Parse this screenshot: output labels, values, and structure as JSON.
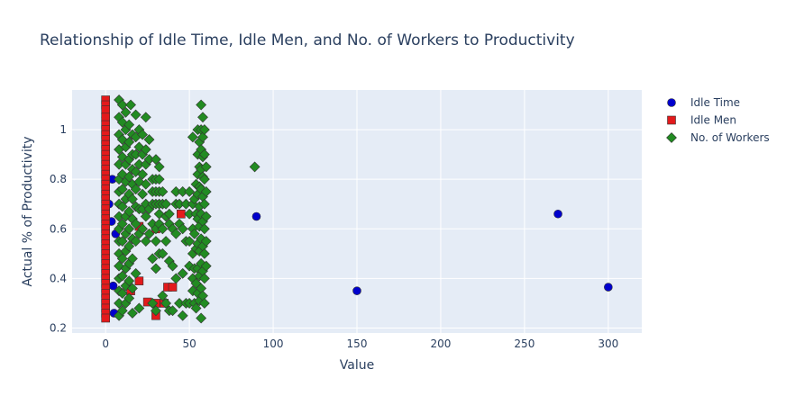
{
  "chart_data": {
    "type": "scatter",
    "title": "Relationship of Idle Time, Idle Men, and No. of Workers to Productivity",
    "xlabel": "Value",
    "ylabel": "Actual % of Productivity",
    "xlim": [
      -20,
      320
    ],
    "ylim": [
      0.18,
      1.16
    ],
    "x_ticks": [
      0,
      50,
      100,
      150,
      200,
      250,
      300
    ],
    "y_ticks": [
      0.2,
      0.4,
      0.6,
      0.8,
      1
    ],
    "grid": true,
    "legend_position": "top-right",
    "colors": {
      "plot_bg": "#e5ecf6",
      "grid": "#ffffff",
      "idle_time": "#0000cd",
      "idle_men": "#e31a1c",
      "workers": "#228b22",
      "marker_edge": "#333333"
    },
    "series": [
      {
        "name": "Idle Time",
        "marker": "circle",
        "points": [
          [
            0,
            1.05
          ],
          [
            0,
            0.98
          ],
          [
            0,
            0.9
          ],
          [
            0,
            0.82
          ],
          [
            0,
            0.75
          ],
          [
            0,
            0.68
          ],
          [
            0,
            0.6
          ],
          [
            0,
            0.5
          ],
          [
            0,
            0.4
          ],
          [
            0,
            0.3
          ],
          [
            2,
            0.7
          ],
          [
            3.5,
            0.63
          ],
          [
            4,
            0.8
          ],
          [
            4.5,
            0.37
          ],
          [
            5,
            0.26
          ],
          [
            6,
            0.58
          ],
          [
            90,
            0.65
          ],
          [
            150,
            0.35
          ],
          [
            270,
            0.66
          ],
          [
            300,
            0.365
          ]
        ]
      },
      {
        "name": "Idle Men",
        "marker": "square",
        "points": [
          [
            0,
            1.12
          ],
          [
            0,
            1.1
          ],
          [
            0,
            1.08
          ],
          [
            0,
            1.05
          ],
          [
            0,
            1.02
          ],
          [
            0,
            1.0
          ],
          [
            0,
            0.98
          ],
          [
            0,
            0.96
          ],
          [
            0,
            0.94
          ],
          [
            0,
            0.92
          ],
          [
            0,
            0.9
          ],
          [
            0,
            0.88
          ],
          [
            0,
            0.86
          ],
          [
            0,
            0.84
          ],
          [
            0,
            0.82
          ],
          [
            0,
            0.8
          ],
          [
            0,
            0.78
          ],
          [
            0,
            0.76
          ],
          [
            0,
            0.74
          ],
          [
            0,
            0.72
          ],
          [
            0,
            0.7
          ],
          [
            0,
            0.68
          ],
          [
            0,
            0.66
          ],
          [
            0,
            0.64
          ],
          [
            0,
            0.62
          ],
          [
            0,
            0.6
          ],
          [
            0,
            0.58
          ],
          [
            0,
            0.56
          ],
          [
            0,
            0.54
          ],
          [
            0,
            0.52
          ],
          [
            0,
            0.5
          ],
          [
            0,
            0.48
          ],
          [
            0,
            0.46
          ],
          [
            0,
            0.44
          ],
          [
            0,
            0.42
          ],
          [
            0,
            0.4
          ],
          [
            0,
            0.38
          ],
          [
            0,
            0.36
          ],
          [
            0,
            0.34
          ],
          [
            0,
            0.32
          ],
          [
            0,
            0.3
          ],
          [
            0,
            0.28
          ],
          [
            0,
            0.26
          ],
          [
            0,
            0.24
          ],
          [
            15,
            0.35
          ],
          [
            20,
            0.61
          ],
          [
            20,
            0.39
          ],
          [
            25,
            0.305
          ],
          [
            30,
            0.6
          ],
          [
            30,
            0.25
          ],
          [
            30,
            0.3
          ],
          [
            35,
            0.3
          ],
          [
            37,
            0.365
          ],
          [
            40,
            0.365
          ],
          [
            45,
            0.66
          ]
        ]
      },
      {
        "name": "No. of Workers",
        "marker": "diamond",
        "points": [
          [
            8,
            1.12
          ],
          [
            8,
            1.05
          ],
          [
            8,
            0.98
          ],
          [
            8,
            0.92
          ],
          [
            8,
            0.86
          ],
          [
            8,
            0.8
          ],
          [
            8,
            0.75
          ],
          [
            8,
            0.7
          ],
          [
            8,
            0.65
          ],
          [
            8,
            0.6
          ],
          [
            8,
            0.55
          ],
          [
            8,
            0.5
          ],
          [
            8,
            0.45
          ],
          [
            8,
            0.4
          ],
          [
            8,
            0.35
          ],
          [
            8,
            0.3
          ],
          [
            8,
            0.25
          ],
          [
            10,
            1.1
          ],
          [
            10,
            1.03
          ],
          [
            10,
            0.96
          ],
          [
            10,
            0.89
          ],
          [
            10,
            0.82
          ],
          [
            10,
            0.76
          ],
          [
            10,
            0.69
          ],
          [
            10,
            0.62
          ],
          [
            10,
            0.55
          ],
          [
            10,
            0.48
          ],
          [
            10,
            0.41
          ],
          [
            10,
            0.34
          ],
          [
            10,
            0.27
          ],
          [
            12,
            1.07
          ],
          [
            12,
            1.0
          ],
          [
            12,
            0.93
          ],
          [
            12,
            0.86
          ],
          [
            12,
            0.79
          ],
          [
            12,
            0.72
          ],
          [
            12,
            0.65
          ],
          [
            12,
            0.58
          ],
          [
            12,
            0.51
          ],
          [
            12,
            0.44
          ],
          [
            12,
            0.37
          ],
          [
            12,
            0.3
          ],
          [
            14,
            1.02
          ],
          [
            14,
            0.95
          ],
          [
            14,
            0.88
          ],
          [
            14,
            0.81
          ],
          [
            14,
            0.74
          ],
          [
            14,
            0.67
          ],
          [
            14,
            0.6
          ],
          [
            14,
            0.53
          ],
          [
            14,
            0.46
          ],
          [
            14,
            0.39
          ],
          [
            14,
            0.32
          ],
          [
            15,
            1.1
          ],
          [
            16,
            0.98
          ],
          [
            16,
            0.9
          ],
          [
            16,
            0.84
          ],
          [
            16,
            0.78
          ],
          [
            16,
            0.72
          ],
          [
            16,
            0.64
          ],
          [
            16,
            0.56
          ],
          [
            16,
            0.48
          ],
          [
            16,
            0.36
          ],
          [
            16,
            0.26
          ],
          [
            18,
            1.06
          ],
          [
            18,
            0.97
          ],
          [
            18,
            0.9
          ],
          [
            18,
            0.83
          ],
          [
            18,
            0.76
          ],
          [
            18,
            0.69
          ],
          [
            18,
            0.62
          ],
          [
            18,
            0.55
          ],
          [
            18,
            0.42
          ],
          [
            20,
            1.0
          ],
          [
            20,
            0.93
          ],
          [
            20,
            0.86
          ],
          [
            20,
            0.79
          ],
          [
            20,
            0.68
          ],
          [
            20,
            0.58
          ],
          [
            20,
            0.28
          ],
          [
            22,
            0.98
          ],
          [
            22,
            0.9
          ],
          [
            22,
            0.82
          ],
          [
            22,
            0.74
          ],
          [
            22,
            0.68
          ],
          [
            22,
            0.6
          ],
          [
            24,
            1.05
          ],
          [
            24,
            0.92
          ],
          [
            24,
            0.86
          ],
          [
            24,
            0.78
          ],
          [
            24,
            0.7
          ],
          [
            24,
            0.65
          ],
          [
            24,
            0.55
          ],
          [
            26,
            0.96
          ],
          [
            26,
            0.88
          ],
          [
            26,
            0.68
          ],
          [
            26,
            0.58
          ],
          [
            28,
            0.8
          ],
          [
            28,
            0.75
          ],
          [
            28,
            0.7
          ],
          [
            28,
            0.62
          ],
          [
            28,
            0.48
          ],
          [
            28,
            0.3
          ],
          [
            30,
            0.88
          ],
          [
            30,
            0.8
          ],
          [
            30,
            0.75
          ],
          [
            30,
            0.7
          ],
          [
            30,
            0.6
          ],
          [
            30,
            0.55
          ],
          [
            30,
            0.44
          ],
          [
            30,
            0.27
          ],
          [
            32,
            0.85
          ],
          [
            32,
            0.8
          ],
          [
            32,
            0.75
          ],
          [
            32,
            0.7
          ],
          [
            32,
            0.66
          ],
          [
            32,
            0.62
          ],
          [
            32,
            0.5
          ],
          [
            34,
            0.75
          ],
          [
            34,
            0.7
          ],
          [
            34,
            0.6
          ],
          [
            34,
            0.5
          ],
          [
            34,
            0.33
          ],
          [
            36,
            0.7
          ],
          [
            36,
            0.65
          ],
          [
            36,
            0.55
          ],
          [
            36,
            0.3
          ],
          [
            38,
            0.66
          ],
          [
            38,
            0.62
          ],
          [
            38,
            0.47
          ],
          [
            38,
            0.27
          ],
          [
            40,
            0.6
          ],
          [
            40,
            0.45
          ],
          [
            40,
            0.27
          ],
          [
            42,
            0.75
          ],
          [
            42,
            0.7
          ],
          [
            42,
            0.58
          ],
          [
            42,
            0.4
          ],
          [
            44,
            0.7
          ],
          [
            44,
            0.62
          ],
          [
            44,
            0.3
          ],
          [
            46,
            0.75
          ],
          [
            46,
            0.6
          ],
          [
            46,
            0.42
          ],
          [
            46,
            0.25
          ],
          [
            48,
            0.7
          ],
          [
            48,
            0.55
          ],
          [
            48,
            0.3
          ],
          [
            50,
            0.75
          ],
          [
            50,
            0.66
          ],
          [
            50,
            0.55
          ],
          [
            50,
            0.45
          ],
          [
            50,
            0.3
          ],
          [
            52,
            0.97
          ],
          [
            52,
            0.7
          ],
          [
            52,
            0.6
          ],
          [
            52,
            0.5
          ],
          [
            52,
            0.4
          ],
          [
            52,
            0.35
          ],
          [
            53,
            0.72
          ],
          [
            53,
            0.58
          ],
          [
            53,
            0.44
          ],
          [
            53,
            0.3
          ],
          [
            54,
            0.78
          ],
          [
            54,
            0.66
          ],
          [
            54,
            0.52
          ],
          [
            54,
            0.38
          ],
          [
            54,
            0.28
          ],
          [
            55,
            1.0
          ],
          [
            55,
            0.9
          ],
          [
            55,
            0.82
          ],
          [
            55,
            0.74
          ],
          [
            55,
            0.64
          ],
          [
            55,
            0.54
          ],
          [
            55,
            0.44
          ],
          [
            55,
            0.34
          ],
          [
            56,
            0.95
          ],
          [
            56,
            0.85
          ],
          [
            56,
            0.77
          ],
          [
            56,
            0.69
          ],
          [
            56,
            0.61
          ],
          [
            56,
            0.51
          ],
          [
            56,
            0.41
          ],
          [
            56,
            0.31
          ],
          [
            57,
            1.1
          ],
          [
            57,
            1.0
          ],
          [
            57,
            0.92
          ],
          [
            57,
            0.84
          ],
          [
            57,
            0.76
          ],
          [
            57,
            0.66
          ],
          [
            57,
            0.56
          ],
          [
            57,
            0.46
          ],
          [
            57,
            0.36
          ],
          [
            57,
            0.24
          ],
          [
            58,
            1.05
          ],
          [
            58,
            0.97
          ],
          [
            58,
            0.89
          ],
          [
            58,
            0.81
          ],
          [
            58,
            0.73
          ],
          [
            58,
            0.63
          ],
          [
            58,
            0.53
          ],
          [
            58,
            0.43
          ],
          [
            58,
            0.33
          ],
          [
            59,
            1.0
          ],
          [
            59,
            0.9
          ],
          [
            59,
            0.8
          ],
          [
            59,
            0.7
          ],
          [
            59,
            0.6
          ],
          [
            59,
            0.5
          ],
          [
            59,
            0.4
          ],
          [
            59,
            0.3
          ],
          [
            60,
            0.85
          ],
          [
            60,
            0.75
          ],
          [
            60,
            0.65
          ],
          [
            60,
            0.55
          ],
          [
            60,
            0.45
          ],
          [
            89,
            0.85
          ]
        ]
      }
    ]
  }
}
